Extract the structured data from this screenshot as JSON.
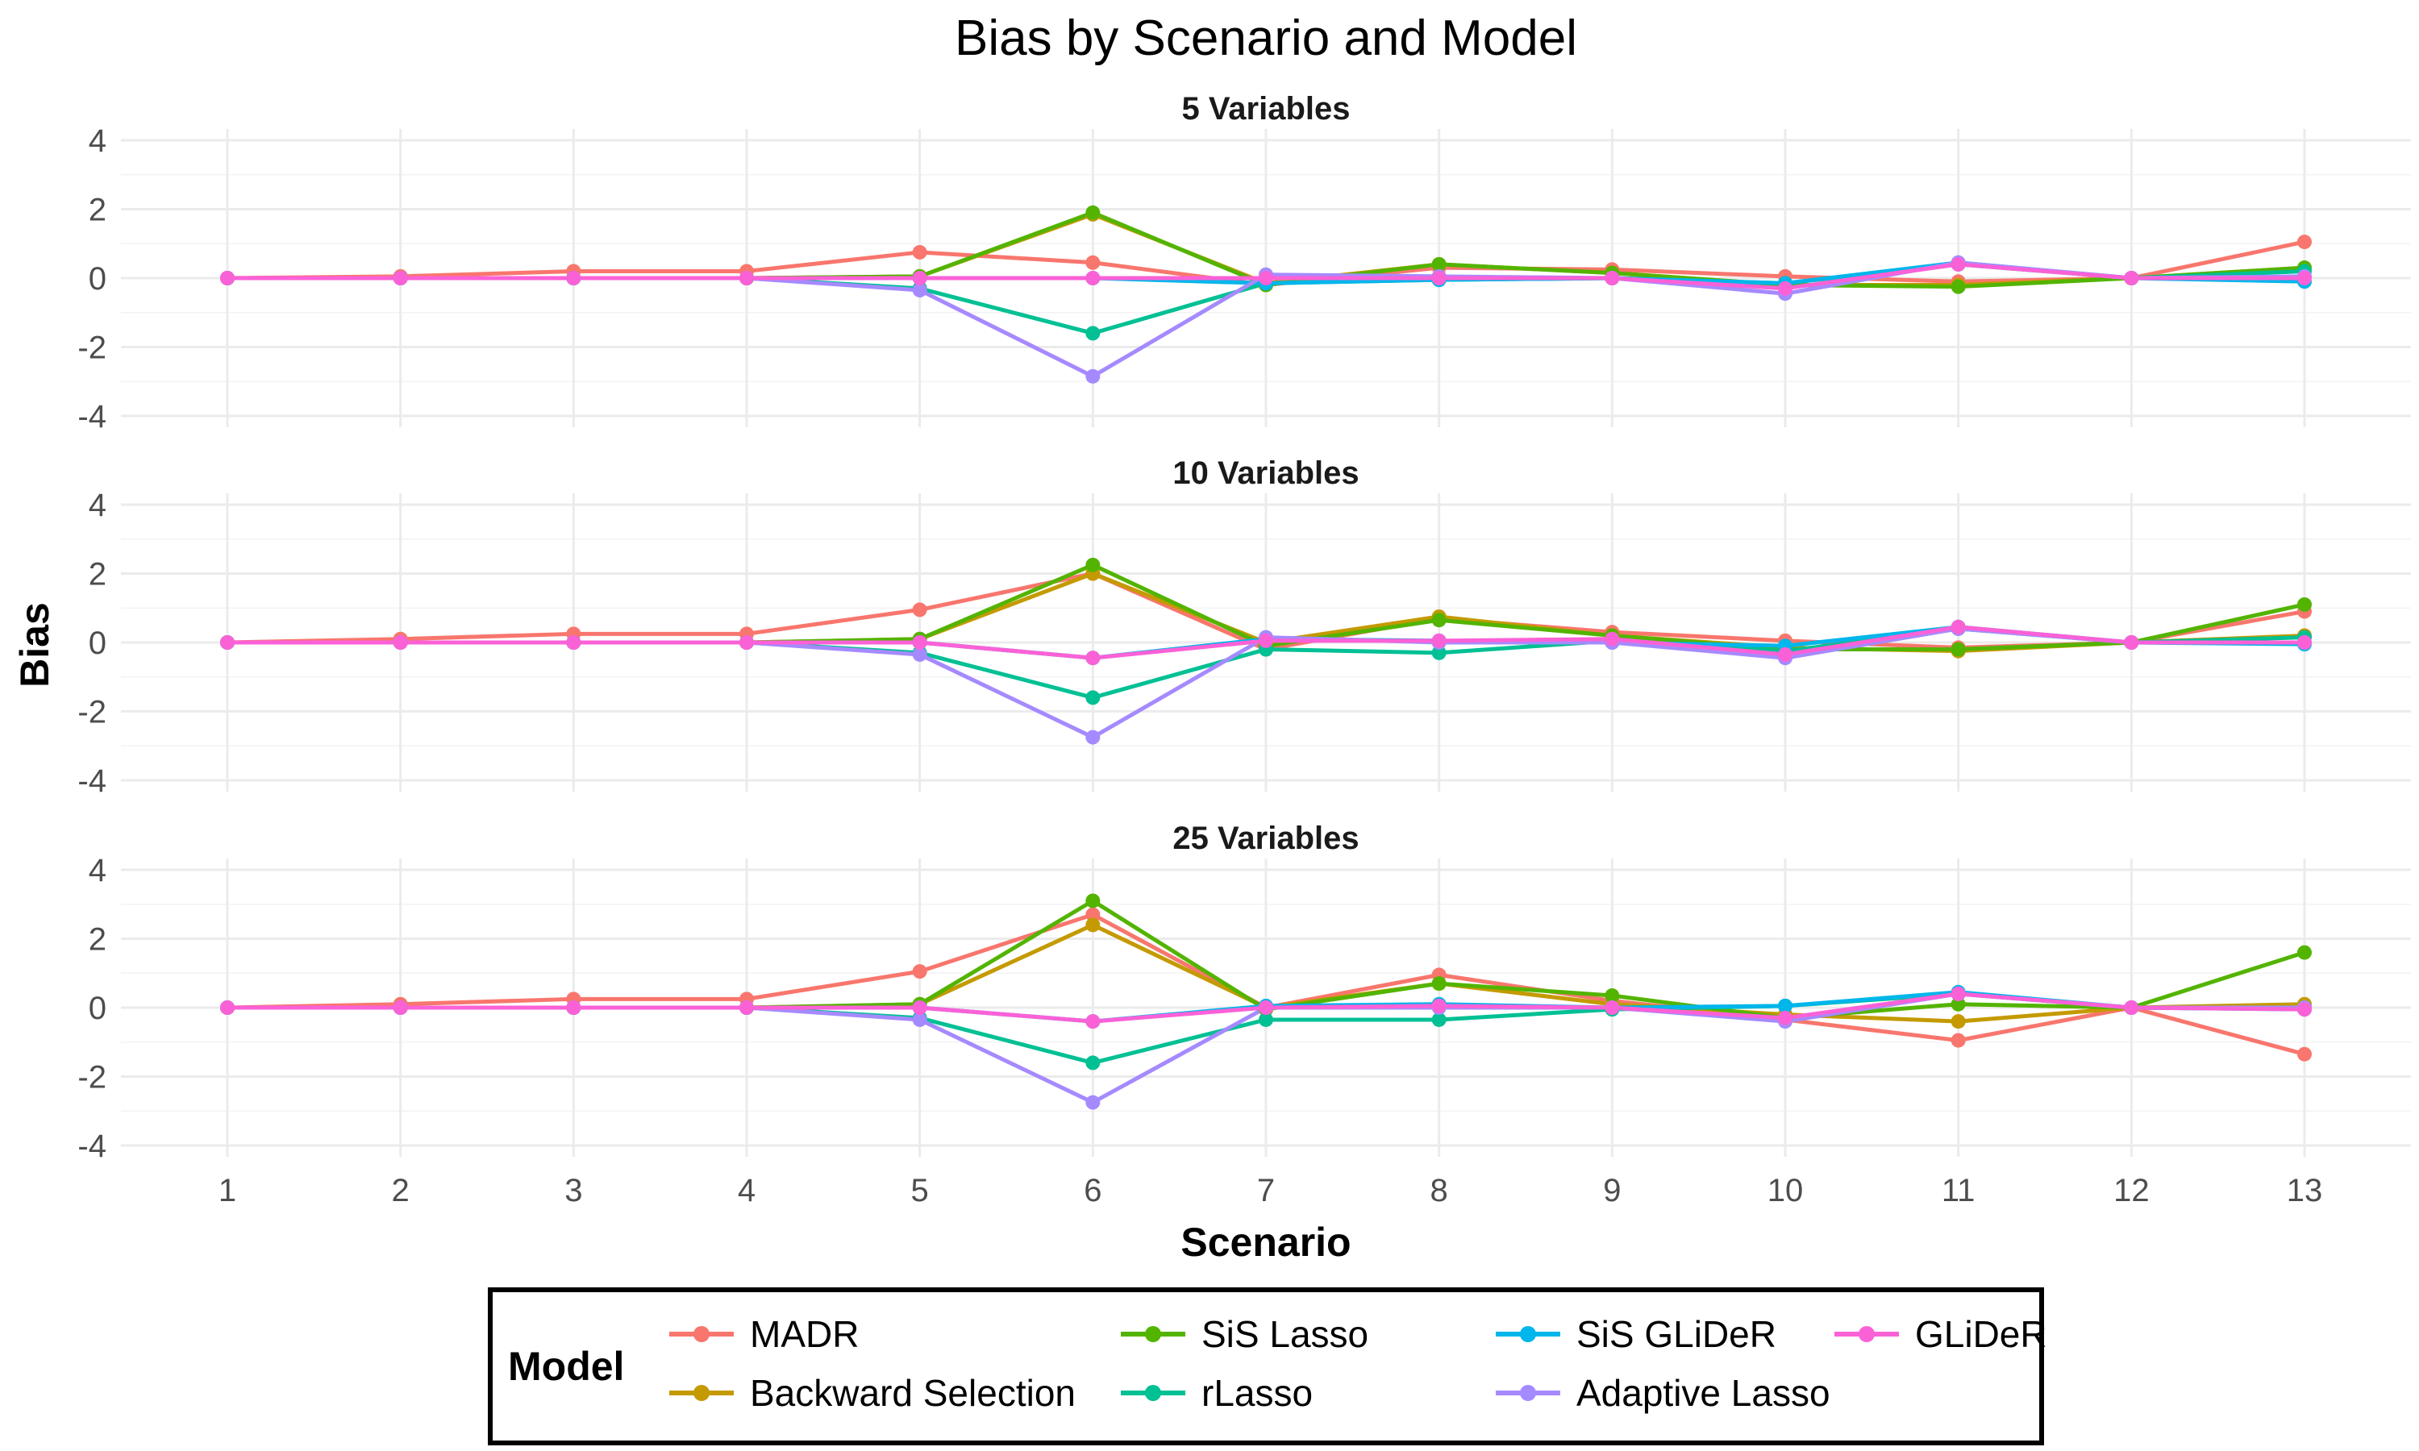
{
  "chart_data": {
    "type": "line",
    "title": "Bias by Scenario and Model",
    "xlabel": "Scenario",
    "ylabel": "Bias",
    "x": [
      1,
      2,
      3,
      4,
      5,
      6,
      7,
      8,
      9,
      10,
      11,
      12,
      13
    ],
    "ylim": [
      -4,
      4
    ],
    "yticks": [
      4,
      2,
      0,
      -2,
      -4
    ],
    "grid": true,
    "legend": {
      "title": "Model",
      "position": "bottom",
      "entries": [
        "MADR",
        "Backward Selection",
        "SiS Lasso",
        "rLasso",
        "SiS GLiDeR",
        "Adaptive Lasso",
        "GLiDeR"
      ]
    },
    "panels": [
      {
        "title": "5 Variables",
        "series": [
          {
            "name": "MADR",
            "color": "#F8766D",
            "values": [
              0,
              0.05,
              0.2,
              0.2,
              0.75,
              0.45,
              -0.2,
              0.3,
              0.25,
              0.05,
              -0.1,
              0,
              1.05
            ]
          },
          {
            "name": "Backward Selection",
            "color": "#C49A00",
            "values": [
              0,
              0,
              0,
              0,
              0.05,
              1.85,
              -0.15,
              0.4,
              0.15,
              -0.2,
              -0.2,
              0,
              0.3
            ]
          },
          {
            "name": "SiS Lasso",
            "color": "#53B400",
            "values": [
              0,
              0,
              0,
              0,
              0.05,
              1.9,
              -0.2,
              0.4,
              0.15,
              -0.2,
              -0.25,
              0,
              0.3
            ]
          },
          {
            "name": "rLasso",
            "color": "#00C094",
            "values": [
              0,
              0,
              0,
              0,
              -0.3,
              -1.6,
              -0.15,
              -0.05,
              0,
              -0.15,
              0.4,
              0,
              0.2
            ]
          },
          {
            "name": "SiS GLiDeR",
            "color": "#00B6EB",
            "values": [
              0,
              0,
              0,
              0,
              0,
              0,
              -0.15,
              -0.05,
              0,
              -0.15,
              0.45,
              0,
              -0.1
            ]
          },
          {
            "name": "Adaptive Lasso",
            "color": "#A58AFF",
            "values": [
              0,
              0,
              0,
              0,
              -0.35,
              -2.85,
              0.1,
              0.05,
              0,
              -0.45,
              0.45,
              0,
              0.05
            ]
          },
          {
            "name": "GLiDeR",
            "color": "#FB61D7",
            "values": [
              0,
              0,
              0,
              0,
              0,
              0,
              0,
              0,
              0,
              -0.3,
              0.4,
              0,
              0
            ]
          }
        ]
      },
      {
        "title": "10 Variables",
        "series": [
          {
            "name": "MADR",
            "color": "#F8766D",
            "values": [
              0,
              0.1,
              0.25,
              0.25,
              0.95,
              2.0,
              -0.2,
              0.7,
              0.3,
              0.05,
              -0.15,
              0,
              0.9
            ]
          },
          {
            "name": "Backward Selection",
            "color": "#C49A00",
            "values": [
              0,
              0,
              0,
              0,
              0.1,
              2.0,
              0,
              0.75,
              0.2,
              -0.15,
              -0.25,
              0,
              0.2
            ]
          },
          {
            "name": "SiS Lasso",
            "color": "#53B400",
            "values": [
              0,
              0,
              0,
              0,
              0.1,
              2.25,
              -0.1,
              0.65,
              0.2,
              -0.2,
              -0.2,
              0,
              1.1
            ]
          },
          {
            "name": "rLasso",
            "color": "#00C094",
            "values": [
              0,
              0,
              0,
              0,
              -0.3,
              -1.6,
              -0.2,
              -0.3,
              0.05,
              -0.25,
              0.4,
              0,
              0.15
            ]
          },
          {
            "name": "SiS GLiDeR",
            "color": "#00B6EB",
            "values": [
              0,
              0,
              0,
              0,
              0,
              -0.45,
              0.1,
              0.05,
              0,
              -0.1,
              0.45,
              0,
              -0.05
            ]
          },
          {
            "name": "Adaptive Lasso",
            "color": "#A58AFF",
            "values": [
              0,
              0,
              0,
              0,
              -0.35,
              -2.75,
              0.15,
              0,
              0,
              -0.45,
              0.4,
              0,
              0
            ]
          },
          {
            "name": "GLiDeR",
            "color": "#FB61D7",
            "values": [
              0,
              0,
              0,
              0,
              0,
              -0.45,
              0.05,
              0.05,
              0.1,
              -0.35,
              0.45,
              0,
              0
            ]
          }
        ]
      },
      {
        "title": "25 Variables",
        "series": [
          {
            "name": "MADR",
            "color": "#F8766D",
            "values": [
              0,
              0.1,
              0.25,
              0.25,
              1.05,
              2.7,
              0,
              0.95,
              0.2,
              -0.35,
              -0.95,
              0,
              -1.35
            ]
          },
          {
            "name": "Backward Selection",
            "color": "#C49A00",
            "values": [
              0,
              0,
              0,
              0,
              0.1,
              2.4,
              0,
              0.7,
              0.1,
              -0.2,
              -0.4,
              0,
              0.1
            ]
          },
          {
            "name": "SiS Lasso",
            "color": "#53B400",
            "values": [
              0,
              0,
              0,
              0,
              0.1,
              3.1,
              -0.05,
              0.7,
              0.35,
              -0.3,
              0.1,
              0,
              1.6
            ]
          },
          {
            "name": "rLasso",
            "color": "#00C094",
            "values": [
              0,
              0,
              0,
              0,
              -0.3,
              -1.6,
              -0.35,
              -0.35,
              -0.05,
              0.05,
              0.4,
              0,
              0
            ]
          },
          {
            "name": "SiS GLiDeR",
            "color": "#00B6EB",
            "values": [
              0,
              0,
              0,
              0,
              0,
              -0.4,
              0.05,
              0.1,
              0,
              0.05,
              0.45,
              0,
              -0.05
            ]
          },
          {
            "name": "Adaptive Lasso",
            "color": "#A58AFF",
            "values": [
              0,
              0,
              0,
              0,
              -0.35,
              -2.75,
              0,
              0,
              0,
              -0.4,
              0.4,
              0,
              0
            ]
          },
          {
            "name": "GLiDeR",
            "color": "#FB61D7",
            "values": [
              0,
              0,
              0,
              0,
              0,
              -0.4,
              0,
              0.05,
              0,
              -0.3,
              0.4,
              0,
              -0.05
            ]
          }
        ]
      }
    ]
  }
}
